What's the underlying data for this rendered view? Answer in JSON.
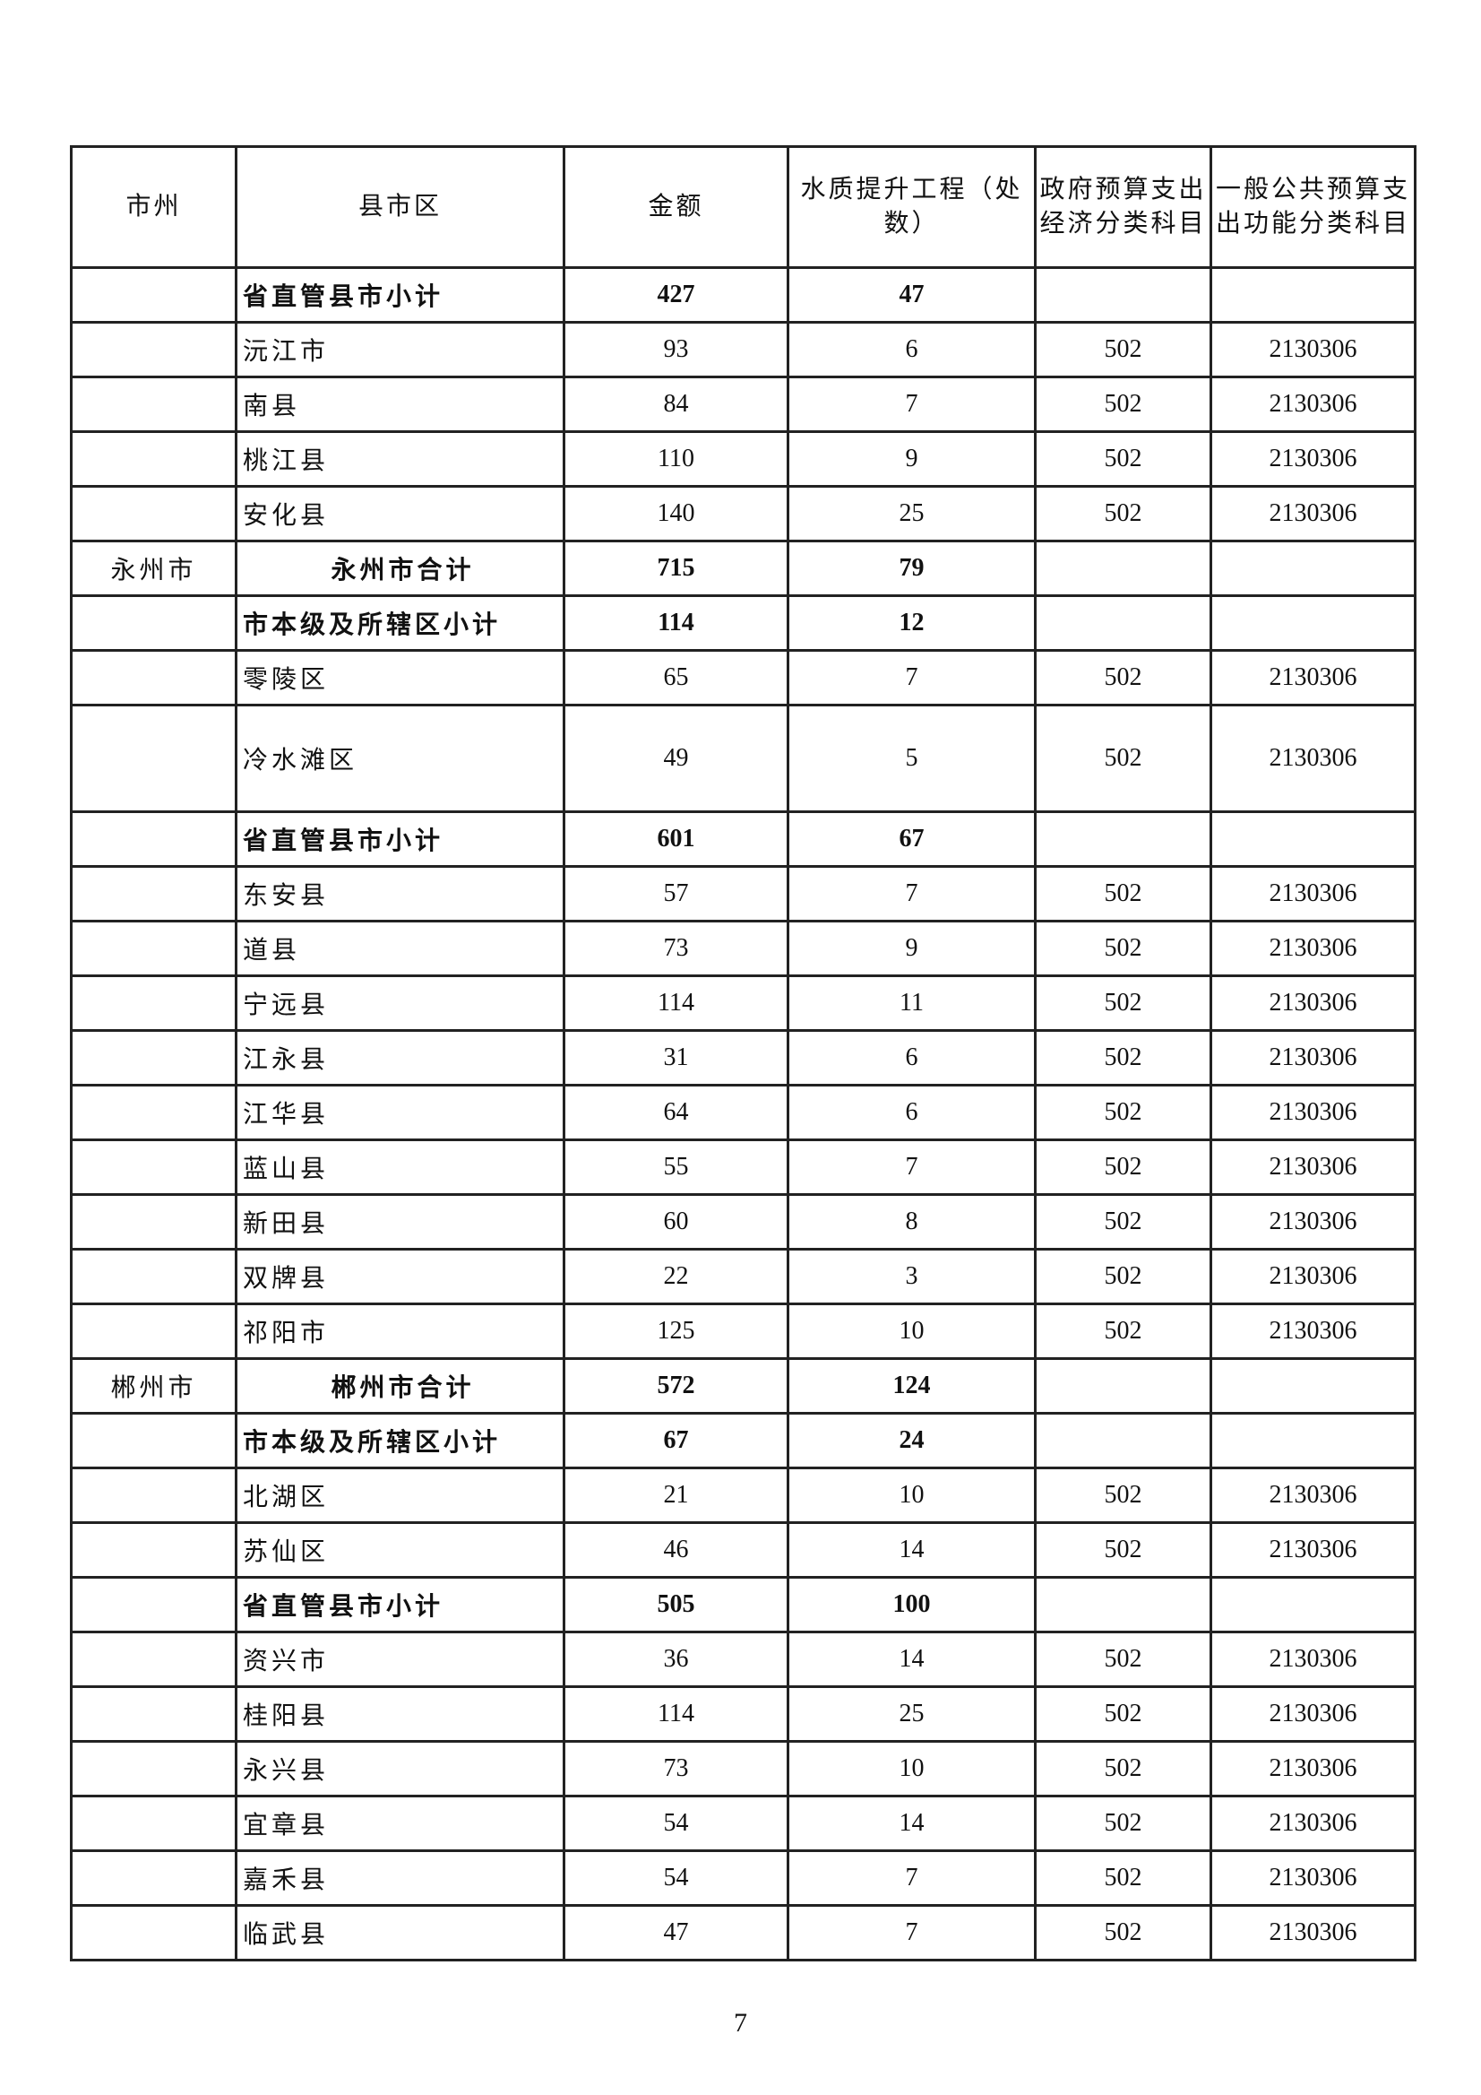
{
  "headers": [
    "市州",
    "县市区",
    "金额",
    "水质提升工程（处数）",
    "政府预算支出经济分类科目",
    "一般公共预算支出功能分类科目"
  ],
  "rows": [
    {
      "type": "sub",
      "city": "",
      "name": "省直管县市小计",
      "amount": "427",
      "count": "47",
      "econ": "",
      "func": ""
    },
    {
      "type": "item",
      "city": "",
      "name": "沅江市",
      "amount": "93",
      "count": "6",
      "econ": "502",
      "func": "2130306"
    },
    {
      "type": "item",
      "city": "",
      "name": "南县",
      "amount": "84",
      "count": "7",
      "econ": "502",
      "func": "2130306"
    },
    {
      "type": "item",
      "city": "",
      "name": "桃江县",
      "amount": "110",
      "count": "9",
      "econ": "502",
      "func": "2130306"
    },
    {
      "type": "item",
      "city": "",
      "name": "安化县",
      "amount": "140",
      "count": "25",
      "econ": "502",
      "func": "2130306"
    },
    {
      "type": "total",
      "city": "永州市",
      "name": "永州市合计",
      "amount": "715",
      "count": "79",
      "econ": "",
      "func": ""
    },
    {
      "type": "sub",
      "city": "",
      "name": "市本级及所辖区小计",
      "amount": "114",
      "count": "12",
      "econ": "",
      "func": ""
    },
    {
      "type": "item",
      "city": "",
      "name": "零陵区",
      "amount": "65",
      "count": "7",
      "econ": "502",
      "func": "2130306"
    },
    {
      "type": "item tall",
      "city": "",
      "name": "冷水滩区",
      "amount": "49",
      "count": "5",
      "econ": "502",
      "func": "2130306"
    },
    {
      "type": "sub",
      "city": "",
      "name": "省直管县市小计",
      "amount": "601",
      "count": "67",
      "econ": "",
      "func": ""
    },
    {
      "type": "item",
      "city": "",
      "name": "东安县",
      "amount": "57",
      "count": "7",
      "econ": "502",
      "func": "2130306"
    },
    {
      "type": "item",
      "city": "",
      "name": "道县",
      "amount": "73",
      "count": "9",
      "econ": "502",
      "func": "2130306"
    },
    {
      "type": "item",
      "city": "",
      "name": "宁远县",
      "amount": "114",
      "count": "11",
      "econ": "502",
      "func": "2130306"
    },
    {
      "type": "item",
      "city": "",
      "name": "江永县",
      "amount": "31",
      "count": "6",
      "econ": "502",
      "func": "2130306"
    },
    {
      "type": "item",
      "city": "",
      "name": "江华县",
      "amount": "64",
      "count": "6",
      "econ": "502",
      "func": "2130306"
    },
    {
      "type": "item",
      "city": "",
      "name": "蓝山县",
      "amount": "55",
      "count": "7",
      "econ": "502",
      "func": "2130306"
    },
    {
      "type": "item",
      "city": "",
      "name": "新田县",
      "amount": "60",
      "count": "8",
      "econ": "502",
      "func": "2130306"
    },
    {
      "type": "item",
      "city": "",
      "name": "双牌县",
      "amount": "22",
      "count": "3",
      "econ": "502",
      "func": "2130306"
    },
    {
      "type": "item",
      "city": "",
      "name": "祁阳市",
      "amount": "125",
      "count": "10",
      "econ": "502",
      "func": "2130306"
    },
    {
      "type": "total",
      "city": "郴州市",
      "name": "郴州市合计",
      "amount": "572",
      "count": "124",
      "econ": "",
      "func": ""
    },
    {
      "type": "sub",
      "city": "",
      "name": "市本级及所辖区小计",
      "amount": "67",
      "count": "24",
      "econ": "",
      "func": ""
    },
    {
      "type": "item",
      "city": "",
      "name": "北湖区",
      "amount": "21",
      "count": "10",
      "econ": "502",
      "func": "2130306"
    },
    {
      "type": "item",
      "city": "",
      "name": "苏仙区",
      "amount": "46",
      "count": "14",
      "econ": "502",
      "func": "2130306"
    },
    {
      "type": "sub",
      "city": "",
      "name": "省直管县市小计",
      "amount": "505",
      "count": "100",
      "econ": "",
      "func": ""
    },
    {
      "type": "item",
      "city": "",
      "name": "资兴市",
      "amount": "36",
      "count": "14",
      "econ": "502",
      "func": "2130306"
    },
    {
      "type": "item",
      "city": "",
      "name": "桂阳县",
      "amount": "114",
      "count": "25",
      "econ": "502",
      "func": "2130306"
    },
    {
      "type": "item",
      "city": "",
      "name": "永兴县",
      "amount": "73",
      "count": "10",
      "econ": "502",
      "func": "2130306"
    },
    {
      "type": "item",
      "city": "",
      "name": "宜章县",
      "amount": "54",
      "count": "14",
      "econ": "502",
      "func": "2130306"
    },
    {
      "type": "item",
      "city": "",
      "name": "嘉禾县",
      "amount": "54",
      "count": "7",
      "econ": "502",
      "func": "2130306"
    },
    {
      "type": "item",
      "city": "",
      "name": "临武县",
      "amount": "47",
      "count": "7",
      "econ": "502",
      "func": "2130306"
    }
  ],
  "page_number": "7"
}
